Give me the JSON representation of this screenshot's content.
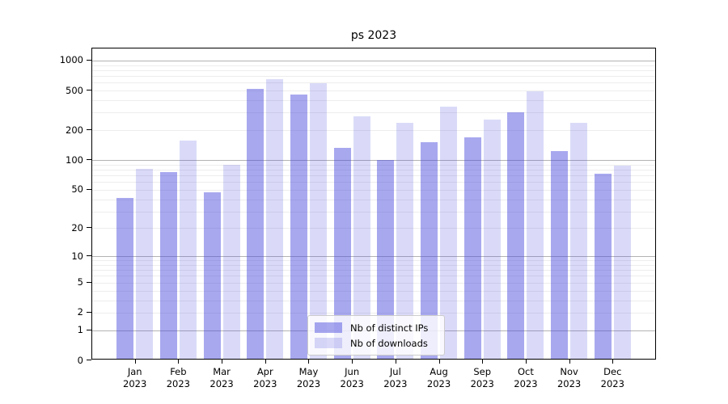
{
  "title": "ps 2023",
  "legend": {
    "items": [
      {
        "label": "Nb of distinct IPs"
      },
      {
        "label": "Nb of downloads"
      }
    ]
  },
  "colors": {
    "distinct_ips_bar": "rgba(70,70,220,0.47)",
    "downloads_bar": "rgba(70,70,220,0.20)",
    "major_gridline": "#b3b3b3",
    "minor_gridline": "#ededed",
    "legend_border": "#cccccc"
  },
  "chart_data": {
    "type": "bar",
    "title": "ps 2023",
    "categories": [
      "Jan",
      "Feb",
      "Mar",
      "Apr",
      "May",
      "Jun",
      "Jul",
      "Aug",
      "Sep",
      "Oct",
      "Nov",
      "Dec"
    ],
    "year_label": "2023",
    "series": [
      {
        "name": "Nb of distinct IPs",
        "color": "rgba(70,70,220,0.47)",
        "values": [
          40,
          73,
          45,
          500,
          440,
          129,
          97,
          145,
          163,
          290,
          119,
          70
        ]
      },
      {
        "name": "Nb of downloads",
        "color": "rgba(70,70,220,0.20)",
        "values": [
          78,
          152,
          86,
          630,
          570,
          265,
          230,
          335,
          248,
          470,
          230,
          85
        ]
      }
    ],
    "yticks": [
      0,
      1,
      2,
      5,
      10,
      20,
      50,
      100,
      200,
      500,
      1000
    ],
    "scale": "log1p",
    "ylim": [
      0,
      1300
    ],
    "xlabel": "",
    "ylabel": "",
    "grid": "horizontal",
    "legend_position": "bottom-center"
  }
}
